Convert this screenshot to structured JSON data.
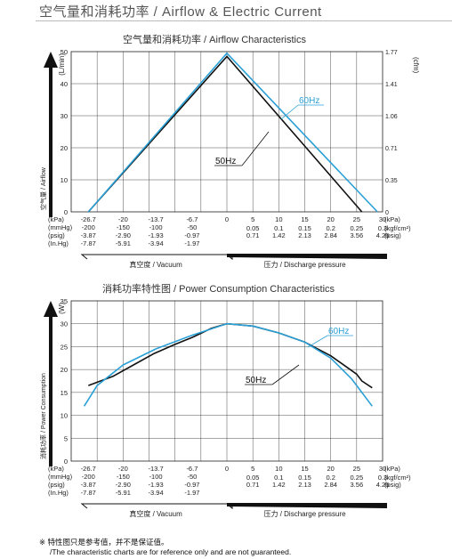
{
  "header": {
    "title": "空气量和消耗功率 / Airflow & Electric Current"
  },
  "chart_data": [
    {
      "type": "line",
      "title": "空气量和消耗功率 / Airflow Characteristics",
      "ylabel_left_unit": "(L/min)",
      "ylabel_left": "空气量 / Airflow",
      "ylabel_right_unit": "(cfm)",
      "ylim": [
        0,
        50
      ],
      "yticks_left": [
        "0",
        "10",
        "20",
        "30",
        "40",
        "50"
      ],
      "yticks_right": [
        "0",
        "0.35",
        "0.71",
        "1.06",
        "1.41",
        "1.77"
      ],
      "x_units": [
        "(kPa)",
        "(mmHg)",
        "(psig)",
        "(In.Hg)"
      ],
      "x_kpa": [
        -26.7,
        -20,
        -13.7,
        -6.7,
        0,
        5,
        10,
        15,
        20,
        25,
        30
      ],
      "xtick_kpa": [
        "-26.7",
        "-20",
        "-13.7",
        "-6.7",
        "0",
        "5",
        "10",
        "15",
        "20",
        "25",
        "30"
      ],
      "xtick_mmhg": [
        "-200",
        "-150",
        "-100",
        "-50"
      ],
      "xtick_psig_vac": [
        "-3.87",
        "-2.90",
        "-1.93",
        "-0.97"
      ],
      "xtick_inhg": [
        "-7.87",
        "-5.91",
        "-3.94",
        "-1.97"
      ],
      "xtick_kgf": [
        "0.05",
        "0.1",
        "0.15",
        "0.2",
        "0.25",
        "0.3"
      ],
      "xtick_psig_pos": [
        "0.71",
        "1.42",
        "2.13",
        "2.84",
        "3.56",
        "4.26"
      ],
      "unit_kpa_right": "(kPa)",
      "unit_kgf_right": "(kgf/cm²)",
      "unit_psig_right": "(psig)",
      "vacuum_label": "真空度 / Vacuum",
      "pressure_label": "压力 / Discharge pressure",
      "series": [
        {
          "name": "50Hz",
          "color": "#111111",
          "points": [
            [
              -26.7,
              0
            ],
            [
              0,
              48.5
            ],
            [
              26,
              0
            ]
          ]
        },
        {
          "name": "60Hz",
          "color": "#2aa0d6",
          "points": [
            [
              -26.7,
              0
            ],
            [
              0,
              49.5
            ],
            [
              29,
              0
            ]
          ]
        }
      ],
      "annotations": [
        {
          "text": "60Hz",
          "color": "#2aa0d6"
        },
        {
          "text": "50Hz",
          "color": "#111111"
        }
      ]
    },
    {
      "type": "line",
      "title": "消耗功率特性图 / Power Consumption Characteristics",
      "ylabel_left_unit": "(W)",
      "ylabel_left": "消耗功率 / Power Consumption",
      "ylim": [
        0,
        35
      ],
      "yticks_left": [
        "0",
        "5",
        "10",
        "15",
        "20",
        "25",
        "30",
        "35"
      ],
      "x_units": [
        "(kPa)",
        "(mmHg)",
        "(psig)",
        "(In.Hg)"
      ],
      "xtick_kpa": [
        "-26.7",
        "-20",
        "-13.7",
        "-6.7",
        "0",
        "5",
        "10",
        "15",
        "20",
        "25",
        "30"
      ],
      "xtick_mmhg": [
        "-200",
        "-150",
        "-100",
        "-50"
      ],
      "xtick_psig_vac": [
        "-3.87",
        "-2.90",
        "-1.93",
        "-0.97"
      ],
      "xtick_inhg": [
        "-7.87",
        "-5.91",
        "-3.94",
        "-1.97"
      ],
      "xtick_kgf": [
        "0.05",
        "0.1",
        "0.15",
        "0.2",
        "0.25",
        "0.3"
      ],
      "xtick_psig_pos": [
        "0.71",
        "1.42",
        "2.13",
        "2.84",
        "3.56",
        "4.26"
      ],
      "unit_kpa_right": "(kPa)",
      "unit_kgf_right": "(kgf/cm²)",
      "unit_psig_right": "(psig)",
      "vacuum_label": "真空度 / Vacuum",
      "pressure_label": "压力 / Discharge pressure",
      "series": [
        {
          "name": "50Hz",
          "color": "#111111",
          "points": [
            [
              -26.7,
              16.5
            ],
            [
              -22,
              18.5
            ],
            [
              -18,
              21
            ],
            [
              -14,
              23.5
            ],
            [
              -10,
              25.5
            ],
            [
              -6.7,
              27
            ],
            [
              -3,
              29
            ],
            [
              0,
              30
            ],
            [
              5,
              29.5
            ],
            [
              10,
              28
            ],
            [
              15,
              26
            ],
            [
              20,
              23
            ],
            [
              25,
              19
            ],
            [
              26,
              17.5
            ],
            [
              28,
              16
            ]
          ]
        },
        {
          "name": "60Hz",
          "color": "#2aa0d6",
          "points": [
            [
              -27.5,
              12
            ],
            [
              -25,
              16.5
            ],
            [
              -20,
              21
            ],
            [
              -13.7,
              24.5
            ],
            [
              -6.7,
              27.5
            ],
            [
              0,
              30
            ],
            [
              5,
              29.5
            ],
            [
              10,
              28
            ],
            [
              15,
              26
            ],
            [
              20,
              22.5
            ],
            [
              24,
              18
            ],
            [
              26,
              15
            ],
            [
              28,
              12
            ]
          ]
        }
      ],
      "annotations": [
        {
          "text": "60Hz",
          "color": "#2aa0d6"
        },
        {
          "text": "50Hz",
          "color": "#111111"
        }
      ]
    }
  ],
  "footnote": {
    "line1": "※ 特性图只是参考值，并不是保证值。",
    "line2": "/The characteristic charts are for reference only and are not guaranteed."
  }
}
